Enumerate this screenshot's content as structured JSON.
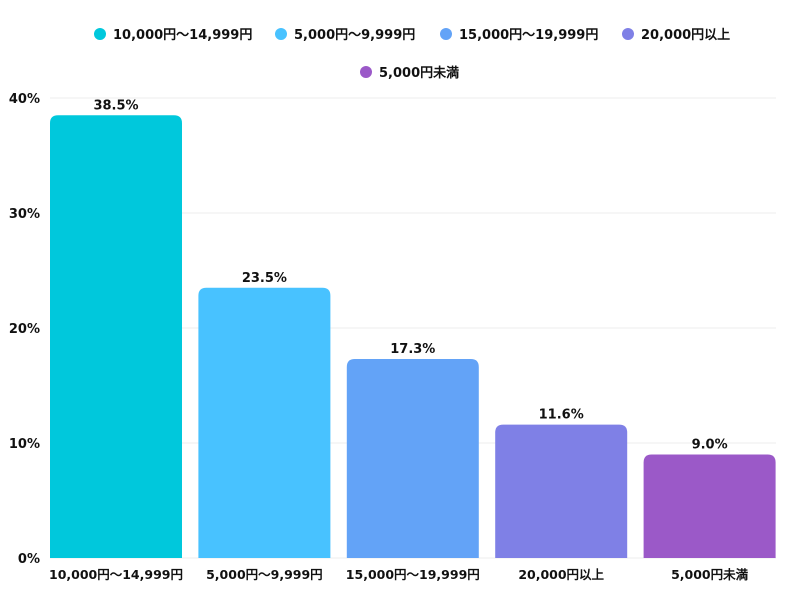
{
  "chart_data": {
    "type": "bar",
    "title": "",
    "xlabel": "",
    "ylabel": "",
    "categories": [
      "10,000円〜14,999円",
      "5,000円〜9,999円",
      "15,000円〜19,999円",
      "20,000円以上",
      "5,000円未満"
    ],
    "values": [
      38.5,
      23.5,
      17.3,
      11.6,
      9.0
    ],
    "data_labels": [
      "38.5%",
      "23.5%",
      "17.3%",
      "11.6%",
      "9.0%"
    ],
    "colors": [
      "#00C8DC",
      "#48C2FF",
      "#63A3F7",
      "#7F80E6",
      "#9B59C8"
    ],
    "ylim": [
      0,
      40
    ],
    "yticks": [
      0,
      10,
      20,
      30,
      40
    ],
    "ytick_labels": [
      "0%",
      "10%",
      "20%",
      "30%",
      "40%"
    ],
    "grid": true,
    "legend": {
      "placement": "top-center",
      "entries": [
        "10,000円〜14,999円",
        "5,000円〜9,999円",
        "15,000円〜19,999円",
        "20,000円以上",
        "5,000円未満"
      ]
    }
  }
}
